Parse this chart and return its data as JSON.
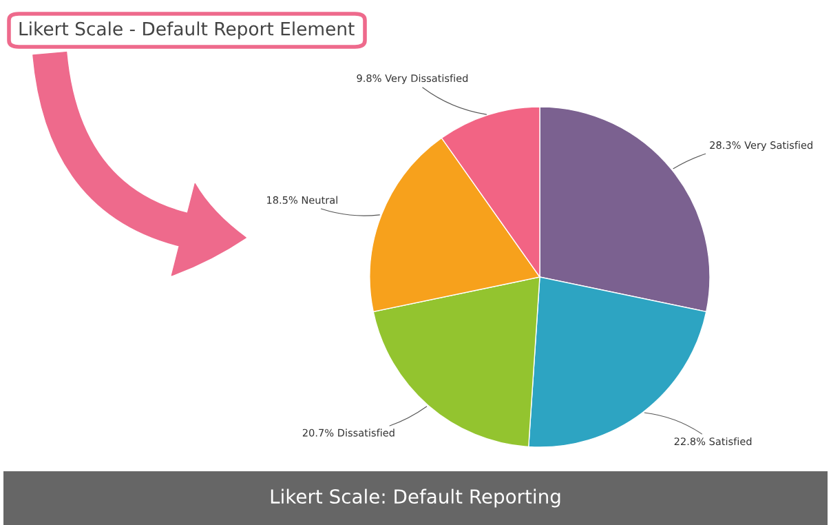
{
  "chart_data": {
    "type": "pie",
    "title": "Likert Scale - Default Report Element",
    "categories": [
      "Very Satisfied",
      "Satisfied",
      "Dissatisfied",
      "Neutral",
      "Very Dissatisfied"
    ],
    "values": [
      28.3,
      22.8,
      20.7,
      18.5,
      9.8
    ],
    "value_labels": [
      "28.3%",
      "22.8%",
      "20.7%",
      "18.5%",
      "9.8%"
    ],
    "colors": [
      "#7b6190",
      "#2da4c2",
      "#93c42f",
      "#f7a11c",
      "#f26484"
    ],
    "annotations": [
      "Likert Scale: Default Reporting"
    ]
  }
}
